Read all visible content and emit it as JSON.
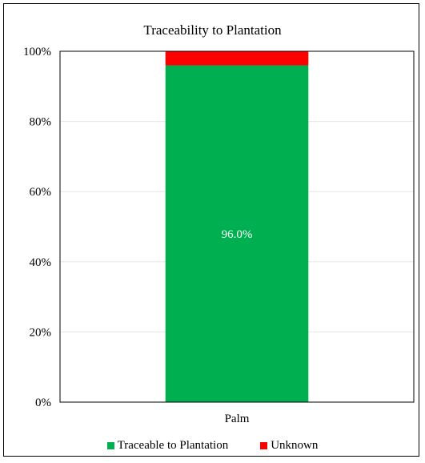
{
  "chart_data": {
    "type": "bar",
    "stacked": true,
    "percent": true,
    "title": "Traceability to Plantation",
    "categories": [
      "Palm"
    ],
    "series": [
      {
        "name": "Traceable to Plantation",
        "values": [
          96.0
        ],
        "color": "#00b050",
        "data_label": "96.0%"
      },
      {
        "name": "Unknown",
        "values": [
          4.0
        ],
        "color": "#ff0000"
      }
    ],
    "y_ticks": [
      "0%",
      "20%",
      "40%",
      "60%",
      "80%",
      "100%"
    ],
    "ylim": [
      0,
      100
    ],
    "grid": true,
    "legend_position": "bottom"
  }
}
